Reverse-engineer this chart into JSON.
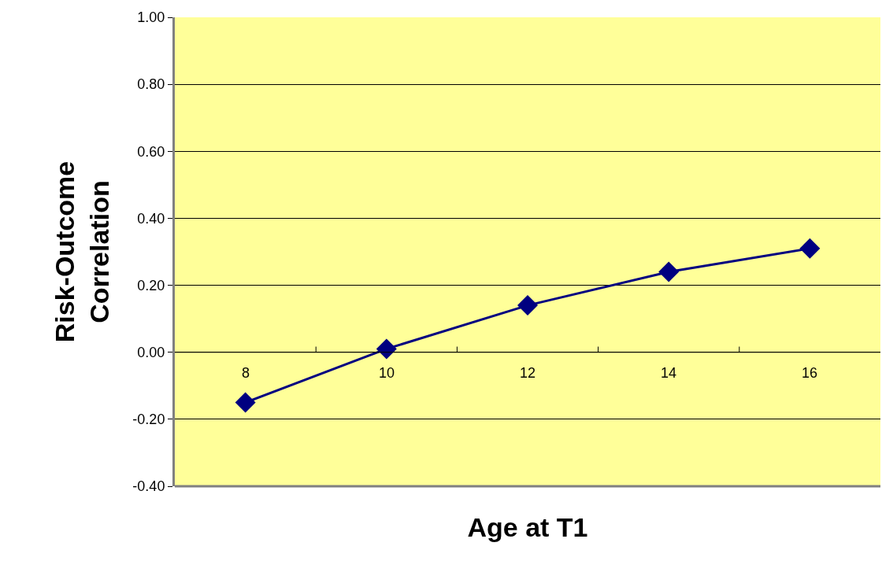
{
  "chart_data": {
    "type": "line",
    "xlabel": "Age at T1",
    "ylabel": "Risk-Outcome\nCorrelation",
    "categories": [
      "8",
      "10",
      "12",
      "14",
      "16"
    ],
    "series": [
      {
        "color": "#000080",
        "values": [
          -0.15,
          0.01,
          0.14,
          0.24,
          0.31
        ]
      }
    ],
    "ylim": [
      -0.4,
      1.0
    ],
    "yticks": [
      {
        "value": -0.4,
        "label": "-0.40"
      },
      {
        "value": -0.2,
        "label": "-0.20"
      },
      {
        "value": 0,
        "label": "0.00"
      },
      {
        "value": 0.2,
        "label": "0.20"
      },
      {
        "value": 0.4,
        "label": "0.40"
      },
      {
        "value": 0.6,
        "label": "0.60"
      },
      {
        "value": 0.8,
        "label": "0.80"
      },
      {
        "value": 1.0,
        "label": "1.00"
      }
    ],
    "grid": "y",
    "marker": "diamond",
    "line_style": "solid"
  }
}
